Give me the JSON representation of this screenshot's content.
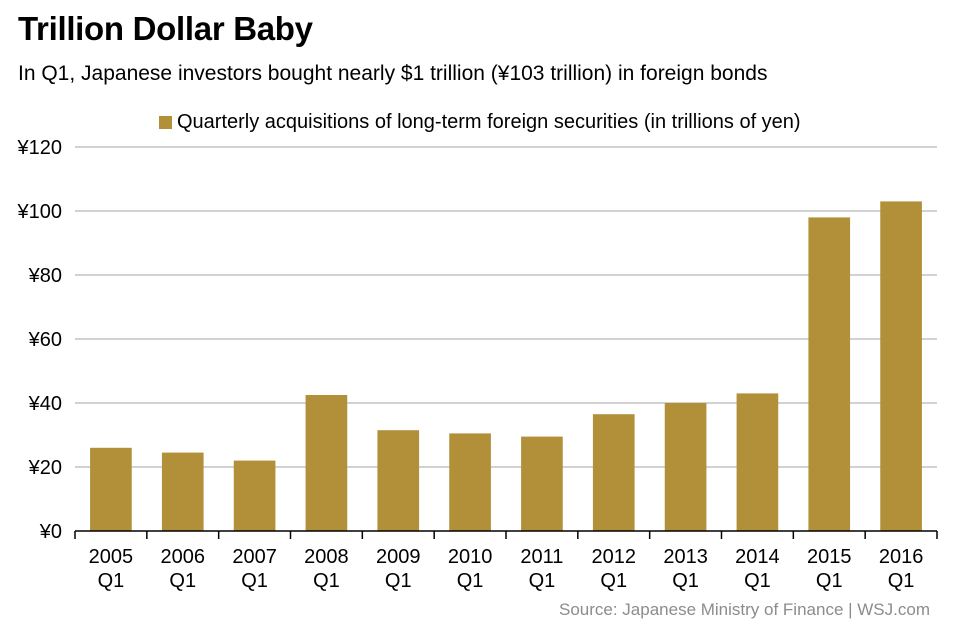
{
  "chart_data": {
    "type": "bar",
    "title": "Trillion Dollar Baby",
    "subtitle": "In Q1, Japanese investors bought nearly $1 trillion (¥103 trillion) in foreign bonds",
    "categories": [
      [
        "2005",
        "Q1"
      ],
      [
        "2006",
        "Q1"
      ],
      [
        "2007",
        "Q1"
      ],
      [
        "2008",
        "Q1"
      ],
      [
        "2009",
        "Q1"
      ],
      [
        "2010",
        "Q1"
      ],
      [
        "2011",
        "Q1"
      ],
      [
        "2012",
        "Q1"
      ],
      [
        "2013",
        "Q1"
      ],
      [
        "2014",
        "Q1"
      ],
      [
        "2015",
        "Q1"
      ],
      [
        "2016",
        "Q1"
      ]
    ],
    "series": [
      {
        "name": "Quarterly acquisitions of long-term foreign securities (in trillions of yen)",
        "color": "#b19039",
        "values": [
          26,
          24.5,
          22,
          42.5,
          31.5,
          30.5,
          29.5,
          36.5,
          40,
          43,
          98,
          103
        ]
      }
    ],
    "y_ticks": [
      "¥0",
      "¥20",
      "¥40",
      "¥60",
      "¥80",
      "¥100",
      "¥120"
    ],
    "ylim": [
      0,
      120
    ],
    "grid": true,
    "legend_position": "top",
    "source": "Source: Japanese Ministry of Finance  |  WSJ.com"
  }
}
